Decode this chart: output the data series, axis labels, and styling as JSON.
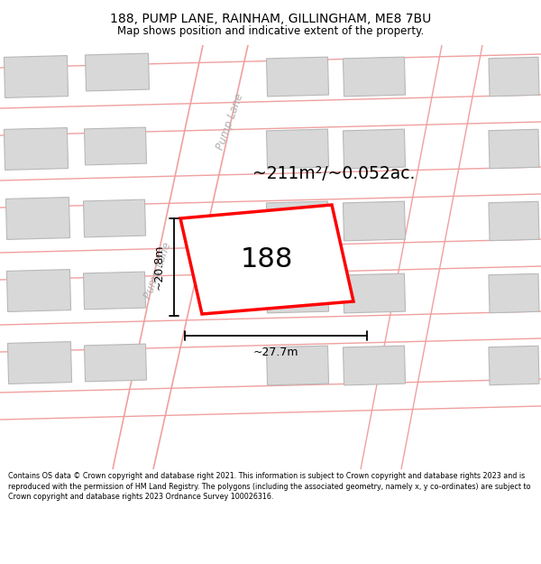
{
  "title": "188, PUMP LANE, RAINHAM, GILLINGHAM, ME8 7BU",
  "subtitle": "Map shows position and indicative extent of the property.",
  "footer": "Contains OS data © Crown copyright and database right 2021. This information is subject to Crown copyright and database rights 2023 and is reproduced with the permission of HM Land Registry. The polygons (including the associated geometry, namely x, y co-ordinates) are subject to Crown copyright and database rights 2023 Ordnance Survey 100026316.",
  "area_label": "~211m²/~0.052ac.",
  "property_number": "188",
  "dim_width": "~27.7m",
  "dim_height": "~20.8m",
  "road_label": "Pump Lane",
  "map_bg": "#ffffff",
  "plot_color": "#ff0000",
  "building_fill": "#d8d8d8",
  "building_edge": "#b8b8b8",
  "road_line_color": "#f0a0a0",
  "title_fontsize": 10,
  "subtitle_fontsize": 8.5,
  "footer_fontsize": 5.8
}
